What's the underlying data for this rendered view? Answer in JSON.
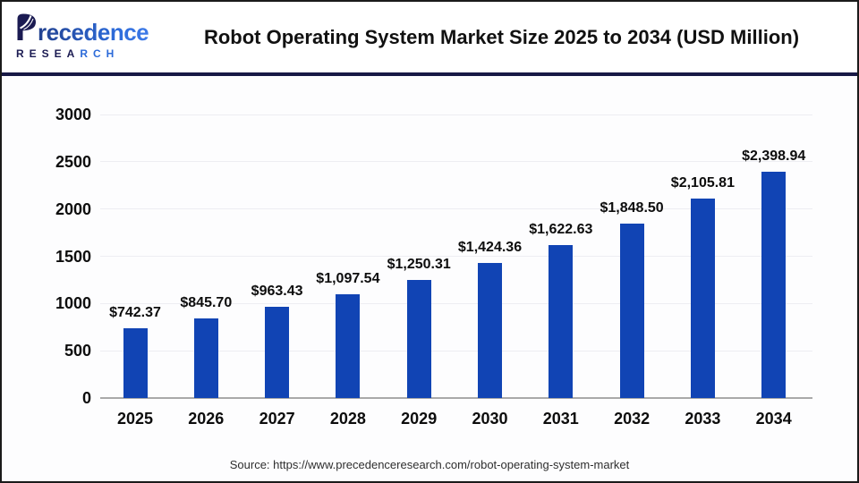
{
  "header": {
    "logo": {
      "brand_word": "Precedence",
      "word_rest": "recedence",
      "research_dark": "RESEA",
      "research_blue": "RCH"
    },
    "title": "Robot Operating System Market Size 2025 to 2034 (USD Million)"
  },
  "chart_data": {
    "type": "bar",
    "title": "Robot Operating System Market Size 2025 to 2034 (USD Million)",
    "categories": [
      "2025",
      "2026",
      "2027",
      "2028",
      "2029",
      "2030",
      "2031",
      "2032",
      "2033",
      "2034"
    ],
    "values": [
      742.37,
      845.7,
      963.43,
      1097.54,
      1250.31,
      1424.36,
      1622.63,
      1848.5,
      2105.81,
      2398.94
    ],
    "value_labels": [
      "$742.37",
      "$845.70",
      "$963.43",
      "$1,097.54",
      "$1,250.31",
      "$1,424.36",
      "$1,622.63",
      "$1,848.50",
      "$2,105.81",
      "$2,398.94"
    ],
    "unit": "USD Million",
    "y_ticks": [
      0,
      500,
      1000,
      1500,
      2000,
      2500,
      3000
    ],
    "ylim": [
      0,
      3000
    ],
    "grid": true,
    "legend": "none",
    "bar_color": "#1144b4"
  },
  "footer": {
    "source": "Source: https://www.precedenceresearch.com/robot-operating-system-market"
  },
  "colors": {
    "bar": "#1144b4",
    "divider_navy": "#181945",
    "logo_navy": "#1b1b52",
    "logo_blue": "#2d6bd9",
    "gridline": "#ededf2",
    "axis_line": "#a9a9a9"
  }
}
